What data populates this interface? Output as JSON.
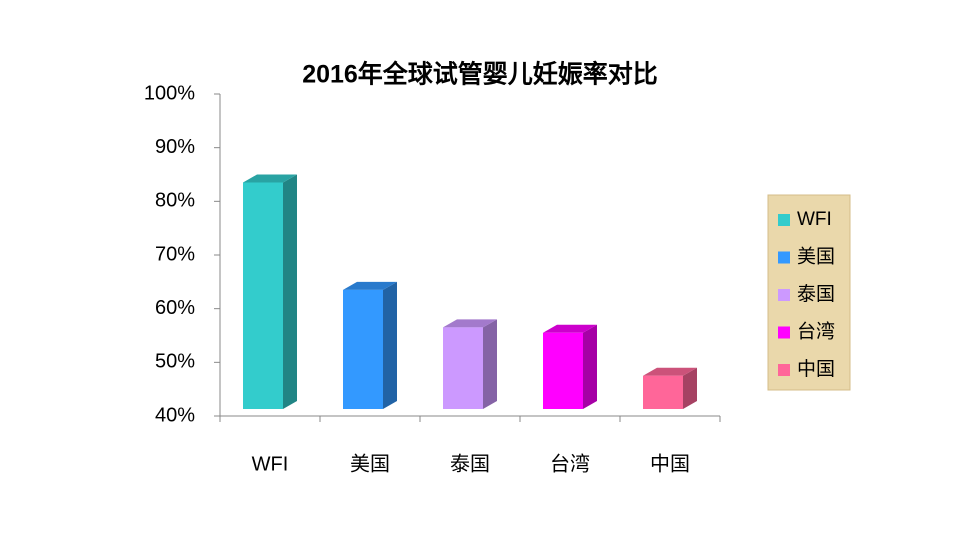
{
  "chart_data": {
    "type": "bar3d",
    "title": "2016年全球试管婴儿妊娠率对比",
    "categories": [
      "WFI",
      "美国",
      "泰国",
      "台湾",
      "中国"
    ],
    "values": [
      85,
      65,
      58,
      57,
      49
    ],
    "colors": [
      "#33CCCC",
      "#3399FF",
      "#CC99FF",
      "#FF00FF",
      "#FF6699"
    ],
    "ylim": [
      40,
      100
    ],
    "yticks": [
      {
        "value": 40,
        "label": "40%"
      },
      {
        "value": 50,
        "label": "50%"
      },
      {
        "value": 60,
        "label": "60%"
      },
      {
        "value": 70,
        "label": "70%"
      },
      {
        "value": 80,
        "label": "80%"
      },
      {
        "value": 90,
        "label": "90%"
      },
      {
        "value": 100,
        "label": "100%"
      }
    ],
    "legend": "right"
  }
}
